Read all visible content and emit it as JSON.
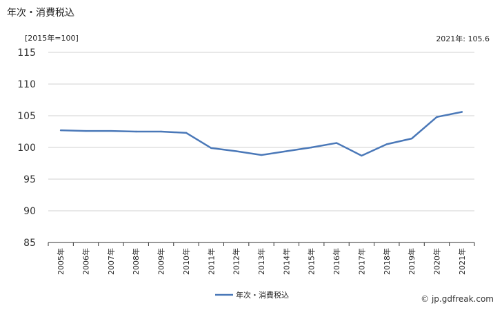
{
  "title": "年次・消費税込",
  "unit_label": "[2015年=100]",
  "latest_label": "2021年: 105.6",
  "credit": "© jp.gdfreak.com",
  "chart_data": {
    "type": "line",
    "title": "年次・消費税込",
    "ylabel": "[2015年=100]",
    "ylim": [
      85,
      115
    ],
    "yticks": [
      85,
      90,
      95,
      100,
      105,
      110,
      115
    ],
    "grid": true,
    "legend": "bottom-center",
    "categories": [
      "2005年",
      "2006年",
      "2007年",
      "2008年",
      "2009年",
      "2010年",
      "2011年",
      "2012年",
      "2013年",
      "2014年",
      "2015年",
      "2016年",
      "2017年",
      "2018年",
      "2019年",
      "2020年",
      "2021年"
    ],
    "series": [
      {
        "name": "年次・消費税込",
        "color": "#4a78b8",
        "values": [
          102.7,
          102.6,
          102.6,
          102.5,
          102.5,
          102.3,
          99.9,
          99.4,
          98.8,
          99.4,
          100.0,
          100.7,
          98.7,
          100.5,
          101.4,
          104.8,
          105.6
        ]
      }
    ]
  }
}
